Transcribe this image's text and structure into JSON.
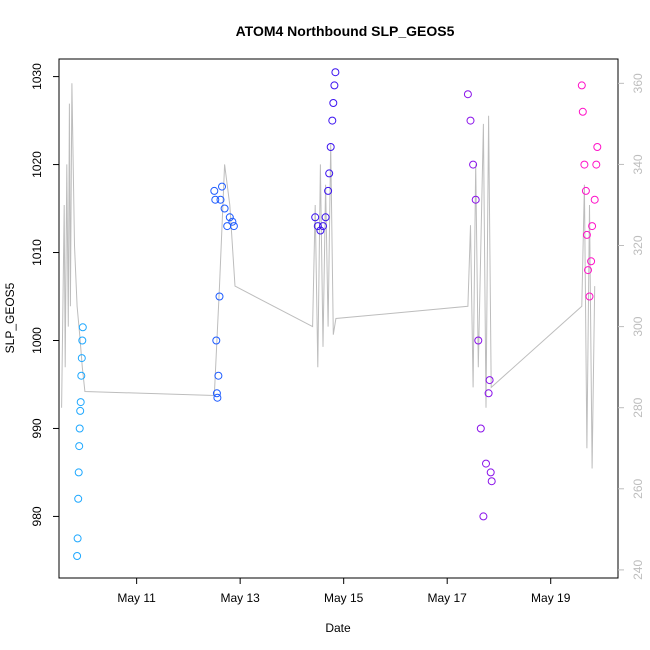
{
  "chart_data": {
    "type": "scatter",
    "title": "ATOM4 Northbound SLP_GEOS5",
    "xlabel": "Date",
    "ylabel": "SLP_GEOS5",
    "x_ticks": [
      "May 11",
      "May 13",
      "May 15",
      "May 17",
      "May 19"
    ],
    "x_tick_days": [
      11,
      13,
      15,
      17,
      19
    ],
    "xlim_days": [
      9.5,
      20.3
    ],
    "ylim": [
      973,
      1032
    ],
    "y_ticks": [
      980,
      990,
      1000,
      1010,
      1020,
      1030
    ],
    "y2lim": [
      238,
      366
    ],
    "y2_ticks": [
      240,
      260,
      280,
      300,
      320,
      340,
      360
    ],
    "grid": false,
    "legend": "none",
    "colors": {
      "axis": "#000000",
      "right_axis": "#bdbdbd",
      "gray_line": "#bdbdbd",
      "flight_1": "#1ea8ff",
      "flight_2": "#1e5cff",
      "flight_3": "#3c14f0",
      "flight_4": "#8a12ea",
      "flight_5": "#ff12c8"
    },
    "series": [
      {
        "color_key": "flight_1",
        "x_days": [
          9.85,
          9.86,
          9.87,
          9.88,
          9.89,
          9.9,
          9.91,
          9.92,
          9.93,
          9.94,
          9.95,
          9.96
        ],
        "values": [
          975.5,
          977.5,
          982,
          985,
          988,
          990,
          992,
          993,
          996,
          998,
          1000,
          1001.5
        ]
      },
      {
        "color_key": "flight_2",
        "x_days": [
          12.5,
          12.52,
          12.54,
          12.55,
          12.56,
          12.58,
          12.6,
          12.62,
          12.65,
          12.7,
          12.75,
          12.8,
          12.85,
          12.88
        ],
        "values": [
          1017,
          1016,
          1000,
          994,
          993.5,
          996,
          1005,
          1016,
          1017.5,
          1015,
          1013,
          1014,
          1013.5,
          1013
        ]
      },
      {
        "color_key": "flight_3",
        "x_days": [
          14.45,
          14.5,
          14.55,
          14.6,
          14.65,
          14.7,
          14.72,
          14.75,
          14.78,
          14.8,
          14.82,
          14.84
        ],
        "values": [
          1014,
          1013,
          1012.5,
          1013,
          1014,
          1017,
          1019,
          1022,
          1025,
          1027,
          1029,
          1030.5
        ]
      },
      {
        "color_key": "flight_4",
        "x_days": [
          17.4,
          17.45,
          17.5,
          17.55,
          17.6,
          17.65,
          17.7,
          17.75,
          17.8,
          17.82,
          17.84,
          17.86
        ],
        "values": [
          1028,
          1025,
          1020,
          1016,
          1000,
          990,
          980,
          986,
          994,
          995.5,
          985,
          984
        ]
      },
      {
        "color_key": "flight_5",
        "x_days": [
          19.6,
          19.62,
          19.65,
          19.68,
          19.7,
          19.72,
          19.75,
          19.78,
          19.8,
          19.85,
          19.88,
          19.9
        ],
        "values": [
          1029,
          1026,
          1020,
          1017,
          1012,
          1008,
          1005,
          1009,
          1013,
          1016,
          1020,
          1022
        ]
      }
    ],
    "gray_series": {
      "x_days": [
        9.55,
        9.6,
        9.62,
        9.65,
        9.68,
        9.7,
        9.72,
        9.75,
        9.8,
        9.85,
        9.9,
        9.95,
        10.0,
        12.5,
        12.6,
        12.7,
        12.8,
        12.9,
        14.4,
        14.45,
        14.5,
        14.55,
        14.6,
        14.65,
        14.7,
        14.75,
        14.8,
        14.85,
        17.4,
        17.45,
        17.5,
        17.55,
        17.6,
        17.7,
        17.75,
        17.8,
        17.85,
        19.6,
        19.65,
        19.7,
        19.75,
        19.8,
        19.85
      ],
      "values": [
        280,
        330,
        290,
        340,
        300,
        355,
        305,
        360,
        320,
        305,
        298,
        290,
        284,
        283,
        310,
        340,
        330,
        310,
        300,
        330,
        290,
        340,
        295,
        335,
        300,
        345,
        298,
        302,
        305,
        325,
        285,
        340,
        290,
        350,
        280,
        352,
        285,
        305,
        335,
        270,
        330,
        265,
        310
      ]
    }
  }
}
